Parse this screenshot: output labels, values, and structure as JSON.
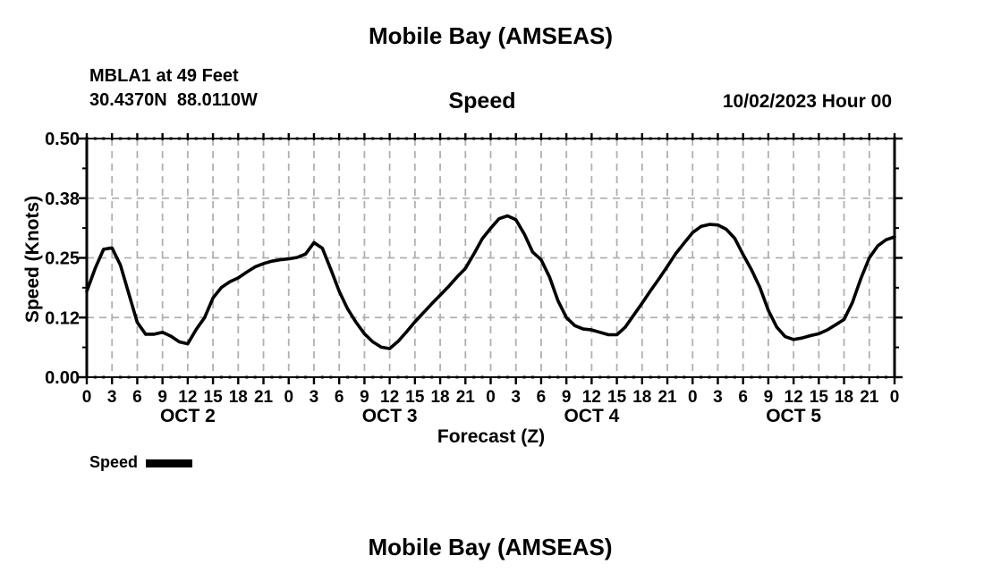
{
  "page": {
    "second_panel_title": "Mobile Bay (AMSEAS)"
  },
  "colors": {
    "text": "#000000",
    "line": "#000000",
    "grid": "#b0b0b0",
    "background": "#ffffff"
  },
  "chart_data": {
    "type": "line",
    "title": "Mobile Bay (AMSEAS)",
    "subtitle": "Speed",
    "station_line1": "MBLA1 at 49 Feet",
    "station_line2": "30.4370N  88.0110W",
    "datetime_label": "10/02/2023 Hour 00",
    "xlabel": "Forecast (Z)",
    "ylabel": "Speed (Knots)",
    "ylim": [
      0,
      0.5
    ],
    "y_tick_values": [
      0,
      0.125,
      0.25,
      0.375,
      0.5
    ],
    "y_tick_labels": [
      "0.00",
      "0.12",
      "0.25",
      "0.38",
      "0.50"
    ],
    "x_range_hours": [
      0,
      96
    ],
    "x_major_tick_step_hours": 3,
    "x_minor_tick_step_hours": 1,
    "x_tick_labels": [
      "0",
      "3",
      "6",
      "9",
      "12",
      "15",
      "18",
      "21",
      "0",
      "3",
      "6",
      "9",
      "12",
      "15",
      "18",
      "21",
      "0",
      "3",
      "6",
      "9",
      "12",
      "15",
      "18",
      "21",
      "0",
      "3",
      "6",
      "9",
      "12",
      "15",
      "18",
      "21",
      "0"
    ],
    "day_labels": [
      "OCT 2",
      "OCT 3",
      "OCT 4",
      "OCT 5"
    ],
    "grid": true,
    "legend": {
      "label": "Speed",
      "position": "bottom-left"
    },
    "series": [
      {
        "name": "Speed",
        "color": "#000000",
        "x_step_hours": 1,
        "x_start_hour": 0,
        "values": [
          0.18,
          0.228,
          0.268,
          0.271,
          0.235,
          0.175,
          0.115,
          0.09,
          0.09,
          0.094,
          0.086,
          0.074,
          0.07,
          0.1,
          0.125,
          0.166,
          0.188,
          0.2,
          0.208,
          0.22,
          0.231,
          0.238,
          0.243,
          0.246,
          0.248,
          0.251,
          0.258,
          0.282,
          0.27,
          0.226,
          0.18,
          0.143,
          0.115,
          0.091,
          0.074,
          0.063,
          0.06,
          0.075,
          0.095,
          0.116,
          0.135,
          0.154,
          0.172,
          0.19,
          0.21,
          0.228,
          0.258,
          0.29,
          0.312,
          0.332,
          0.338,
          0.33,
          0.3,
          0.262,
          0.246,
          0.21,
          0.16,
          0.125,
          0.108,
          0.101,
          0.099,
          0.094,
          0.089,
          0.089,
          0.105,
          0.13,
          0.155,
          0.181,
          0.206,
          0.232,
          0.259,
          0.281,
          0.303,
          0.316,
          0.32,
          0.319,
          0.31,
          0.291,
          0.257,
          0.225,
          0.188,
          0.14,
          0.105,
          0.085,
          0.079,
          0.082,
          0.087,
          0.091,
          0.099,
          0.11,
          0.121,
          0.157,
          0.207,
          0.25,
          0.275,
          0.288,
          0.294
        ]
      }
    ]
  }
}
